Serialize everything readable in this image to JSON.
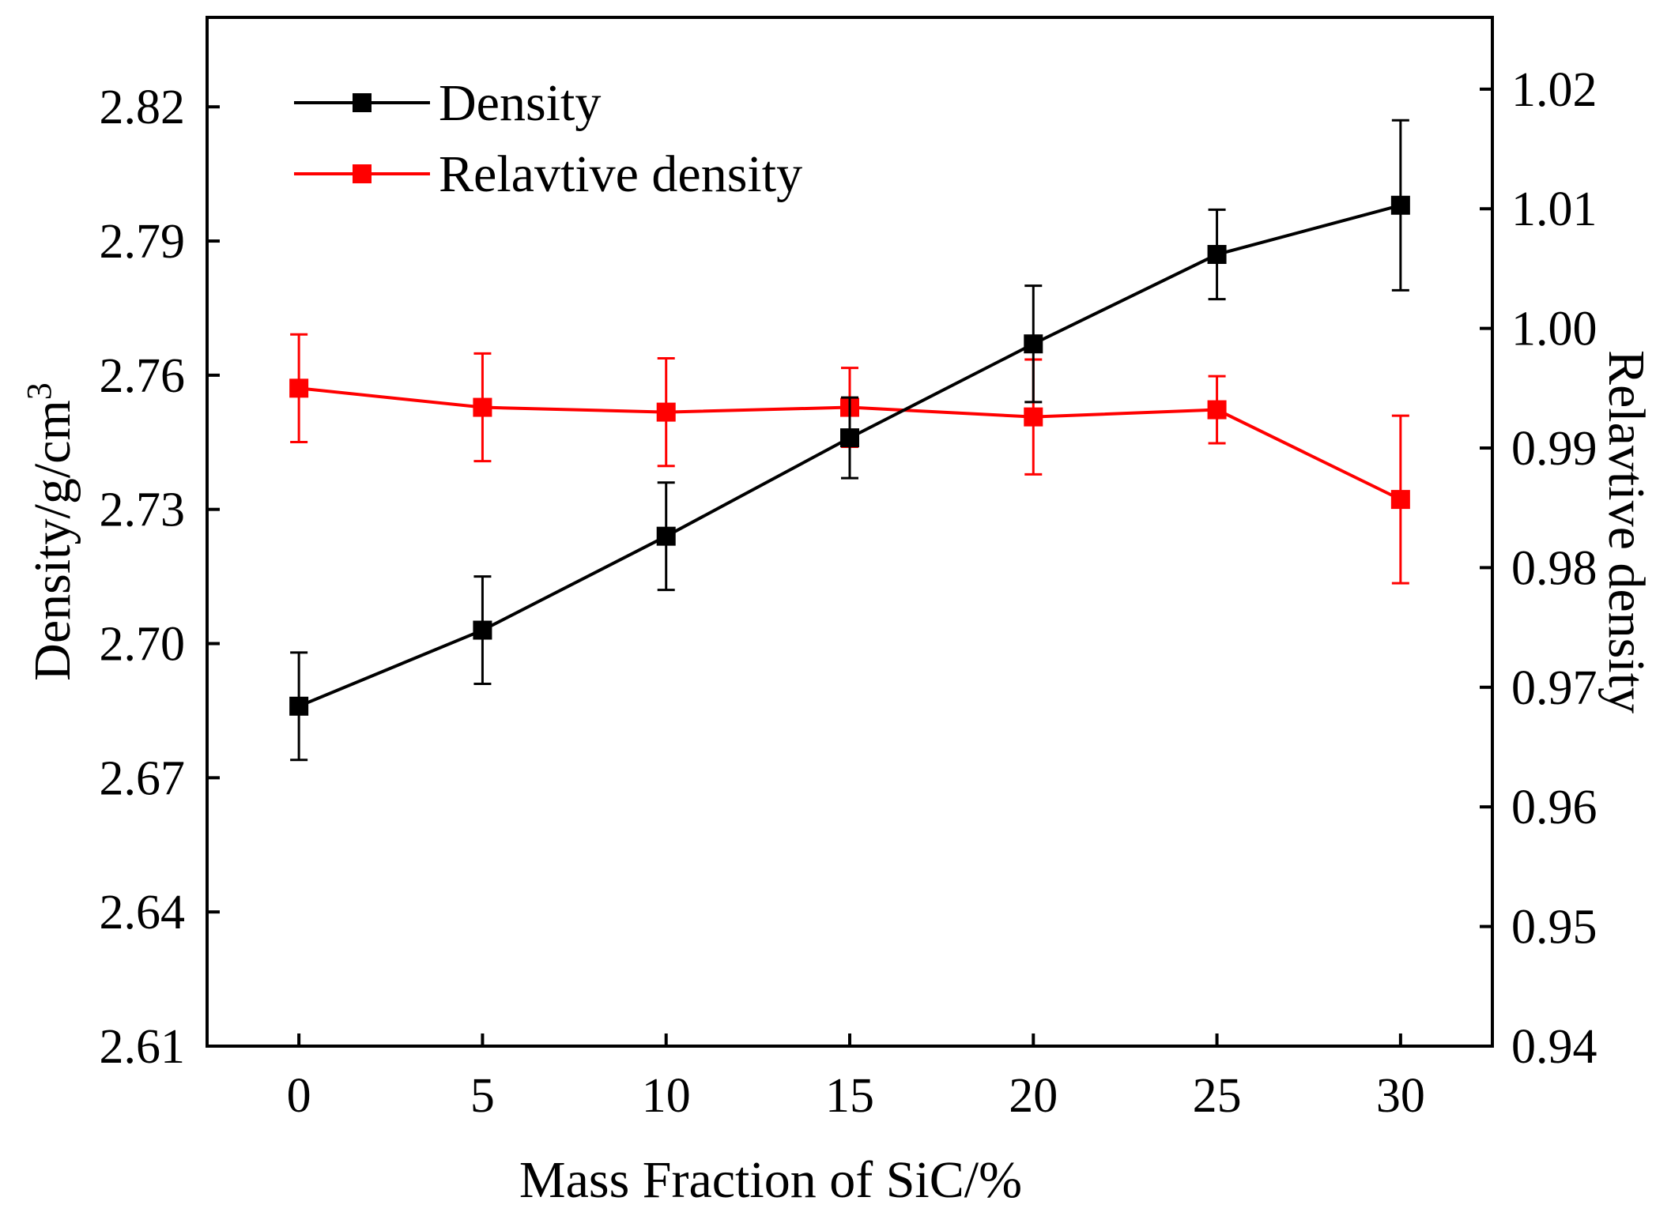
{
  "chart_data": {
    "type": "line",
    "title": "",
    "xlabel": "Mass Fraction of SiC/%",
    "ylabel": "Density/g/cm",
    "ylabel_superscript": "3",
    "y2label": "Relavtive density",
    "x": [
      0,
      5,
      10,
      15,
      20,
      25,
      30
    ],
    "xticks": [
      "0",
      "5",
      "10",
      "15",
      "20",
      "25",
      "30"
    ],
    "xlim": [
      -2.5,
      32.5
    ],
    "ylim": [
      2.61,
      2.84
    ],
    "yticks": [
      "2.61",
      "2.64",
      "2.67",
      "2.70",
      "2.73",
      "2.76",
      "2.79",
      "2.82"
    ],
    "y2lim": [
      0.94,
      1.026
    ],
    "y2ticks": [
      "0.94",
      "0.95",
      "0.96",
      "0.97",
      "0.98",
      "0.99",
      "1.00",
      "1.01",
      "1.02"
    ],
    "legend_position": "top-left",
    "series": [
      {
        "name": "Density",
        "axis": "left",
        "color": "#000000",
        "values": [
          2.686,
          2.703,
          2.724,
          2.746,
          2.767,
          2.787,
          2.798
        ],
        "errors": [
          0.012,
          0.012,
          0.012,
          0.009,
          0.013,
          0.01,
          0.019
        ]
      },
      {
        "name": "Relavtive density",
        "axis": "right",
        "color": "#ff0000",
        "values": [
          0.995,
          0.9934,
          0.993,
          0.9934,
          0.9926,
          0.9932,
          0.9857
        ],
        "errors": [
          0.0045,
          0.0045,
          0.0045,
          0.0033,
          0.0048,
          0.0028,
          0.007
        ]
      }
    ]
  }
}
